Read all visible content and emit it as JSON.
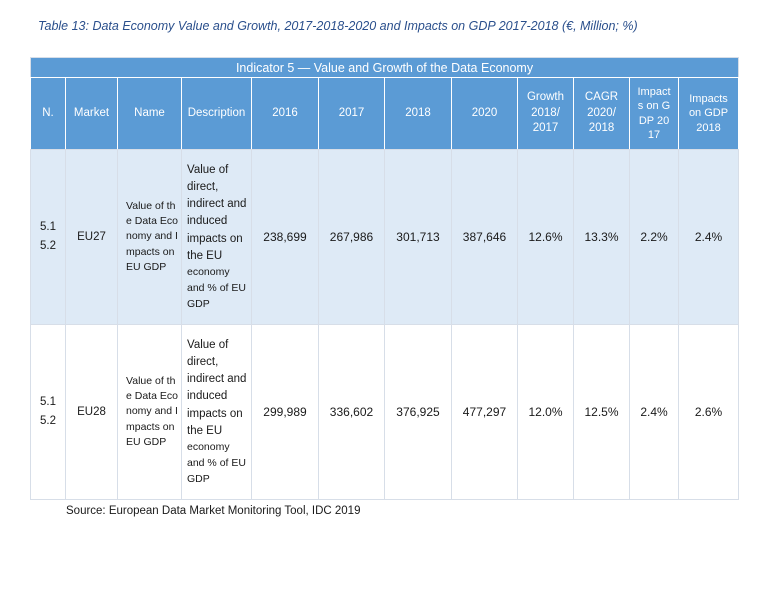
{
  "caption": "Table 13: Data Economy Value and Growth, 2017-2018-2020 and Impacts on GDP 2017-2018 (€, Million; %)",
  "table": {
    "banner": "Indicator 5 — Value and Growth of the Data Economy",
    "headers": {
      "n": "N.",
      "market": "Market",
      "name": "Name",
      "description": "Description",
      "y2016": "2016",
      "y2017": "2017",
      "y2018": "2018",
      "y2020": "2020",
      "growth": "Growth 2018/ 2017",
      "cagr": "CAGR 2020/ 2018",
      "impacts2017": "Impacts on GDP 2017",
      "impacts2018": "Impacts on GDP 2018"
    },
    "rows": [
      {
        "n_line1": "5.1",
        "n_line2": "5.2",
        "market": "EU27",
        "name": "Value of the Data Economy and Impacts on EU GDP",
        "description_main": "Value of direct, indirect and induced impacts on the EU",
        "description_small": "economy and % of EU GDP",
        "v2016": "238,699",
        "v2017": "267,986",
        "v2018": "301,713",
        "v2020": "387,646",
        "growth": "12.6%",
        "cagr": "13.3%",
        "impacts2017": "2.2%",
        "impacts2018": "2.4%"
      },
      {
        "n_line1": "5.1",
        "n_line2": "5.2",
        "market": "EU28",
        "name": "Value of the Data Economy and Impacts on EU GDP",
        "description_main": "Value of direct, indirect and induced impacts on the EU",
        "description_small": "economy and % of EU GDP",
        "v2016": "299,989",
        "v2017": "336,602",
        "v2018": "376,925",
        "v2020": "477,297",
        "growth": "12.0%",
        "cagr": "12.5%",
        "impacts2017": "2.4%",
        "impacts2018": "2.6%"
      }
    ]
  },
  "source": "Source: European Data Market Monitoring Tool, IDC 2019"
}
